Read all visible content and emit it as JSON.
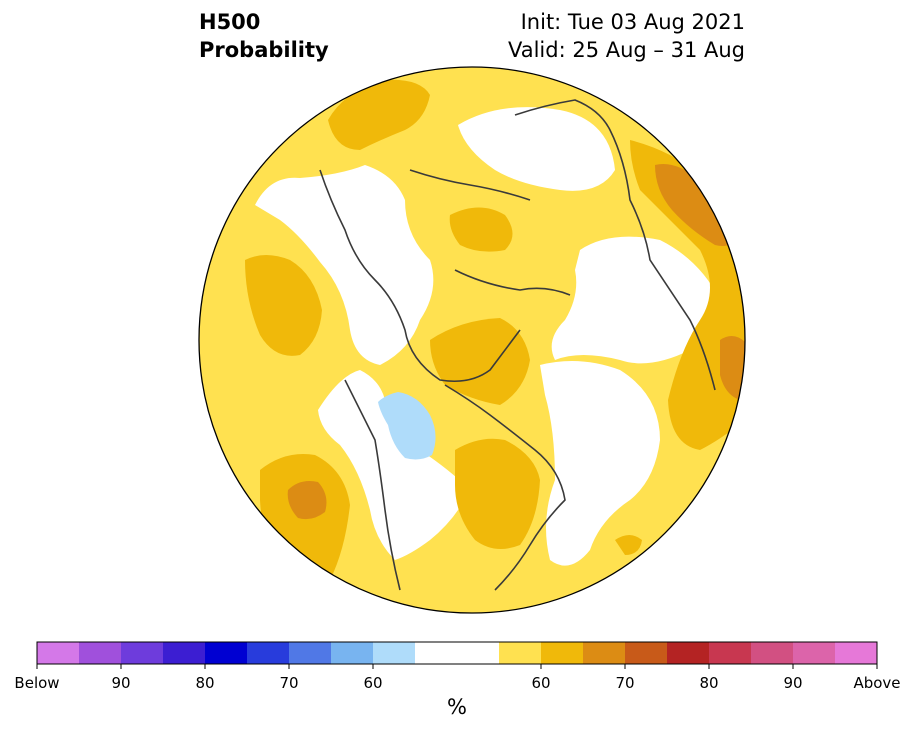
{
  "title": {
    "variable": "H500",
    "product": "Probability",
    "init": "Init: Tue 03 Aug 2021",
    "valid": "Valid: 25 Aug – 31 Aug"
  },
  "colorbar": {
    "unit": "%",
    "colors": [
      "#d478e8",
      "#a050dc",
      "#6e3cdc",
      "#3c1ed2",
      "#0000d2",
      "#283cdc",
      "#5078e6",
      "#78b4f0",
      "#afdcfa",
      "#ffffff",
      "#ffffff",
      "#ffe150",
      "#f0b90a",
      "#dc8c14",
      "#c85a19",
      "#b42323",
      "#c83750",
      "#d25082",
      "#dc64aa",
      "#e678d8"
    ],
    "tick_labels": [
      "Below",
      "90",
      "80",
      "70",
      "60",
      "60",
      "70",
      "80",
      "90",
      "Above"
    ]
  },
  "map": {
    "projection": "north polar stereographic",
    "legend_colors": {
      "near_normal": "#ffffff",
      "above_50": "#ffe150",
      "above_60": "#f0b90a",
      "above_70": "#dc8c14",
      "below_60": "#afdcfa"
    }
  }
}
